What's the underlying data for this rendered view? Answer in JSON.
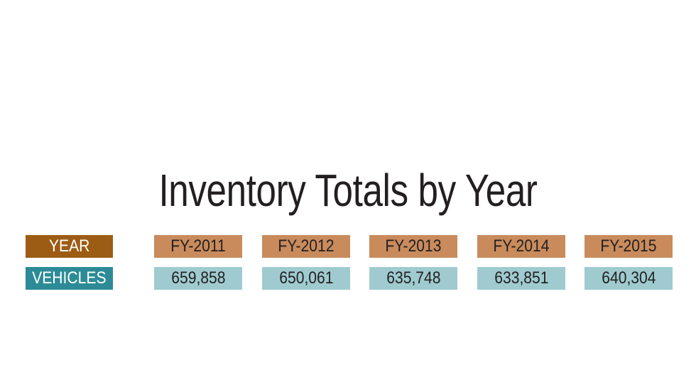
{
  "chart_data": {
    "type": "table",
    "title": "Inventory Totals by Year",
    "row_headers": {
      "year": "YEAR",
      "vehicles": "VEHICLES"
    },
    "categories": [
      "FY-2011",
      "FY-2012",
      "FY-2013",
      "FY-2014",
      "FY-2015"
    ],
    "values": [
      659858,
      650061,
      635748,
      633851,
      640304
    ],
    "value_labels": [
      "659,858",
      "650,061",
      "635,748",
      "633,851",
      "640,304"
    ],
    "colors": {
      "year_header": "#9c5c14",
      "vehicles_header": "#2c8b96",
      "year_cell": "#c98b5c",
      "value_cell": "#9fcbd0"
    }
  }
}
